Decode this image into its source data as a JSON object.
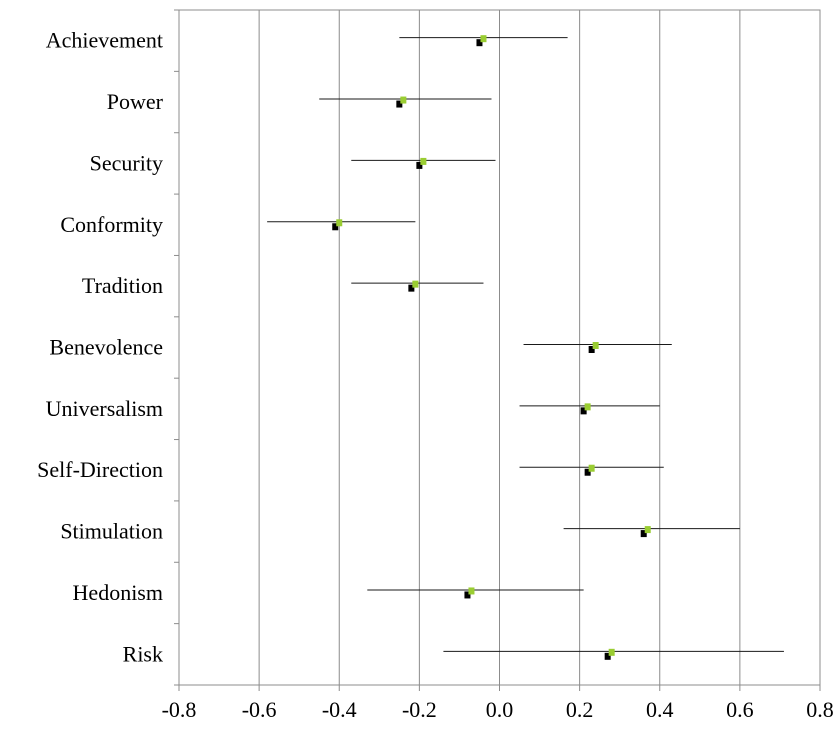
{
  "chart_data": {
    "type": "scatter",
    "orientation": "horizontal",
    "categories": [
      "Achievement",
      "Power",
      "Security",
      "Conformity",
      "Tradition",
      "Benevolence",
      "Universalism",
      "Self-Direction",
      "Stimulation",
      "Hedonism",
      "Risk"
    ],
    "x_ticks": [
      "-0.8",
      "-0.6",
      "-0.4",
      "-0.2",
      "0.0",
      "0.2",
      "0.4",
      "0.6",
      "0.8"
    ],
    "xlim": [
      -0.8,
      0.8
    ],
    "grid": "vertical",
    "series": [
      {
        "color": "#000000",
        "marker": "square",
        "values": [
          -0.05,
          -0.25,
          -0.2,
          -0.41,
          -0.22,
          0.23,
          0.21,
          0.22,
          0.36,
          -0.08,
          0.27
        ]
      },
      {
        "color": "#9acd32",
        "marker": "square",
        "values": [
          -0.04,
          -0.24,
          -0.19,
          -0.4,
          -0.21,
          0.24,
          0.22,
          0.23,
          0.37,
          -0.07,
          0.28
        ]
      }
    ],
    "intervals": [
      [
        -0.25,
        0.17
      ],
      [
        -0.45,
        -0.02
      ],
      [
        -0.37,
        -0.01
      ],
      [
        -0.58,
        -0.21
      ],
      [
        -0.37,
        -0.04
      ],
      [
        0.06,
        0.43
      ],
      [
        0.05,
        0.4
      ],
      [
        0.05,
        0.41
      ],
      [
        0.16,
        0.6
      ],
      [
        -0.33,
        0.21
      ],
      [
        -0.14,
        0.71
      ]
    ]
  }
}
